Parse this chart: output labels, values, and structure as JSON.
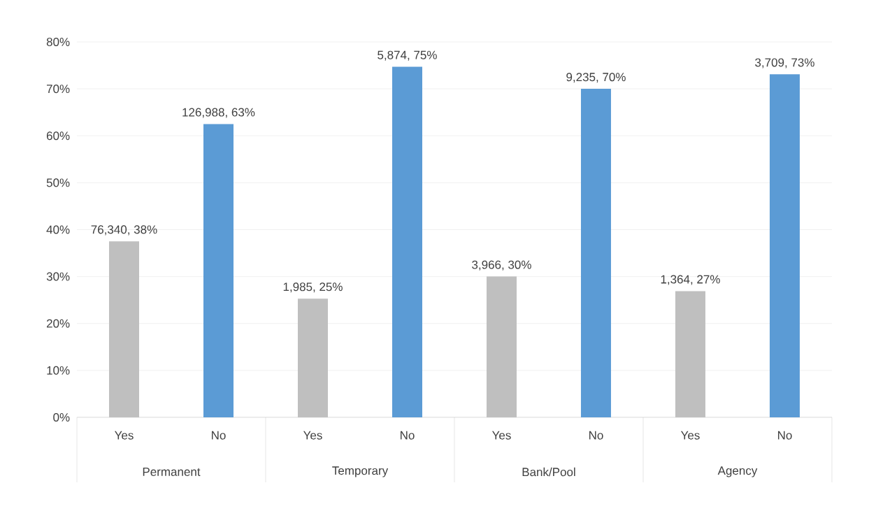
{
  "chart_data": {
    "type": "bar",
    "categories": [
      "Yes",
      "No",
      "Yes",
      "No",
      "Yes",
      "No",
      "Yes",
      "No"
    ],
    "values": [
      37.5,
      62.5,
      25.3,
      74.7,
      30.0,
      70.0,
      26.9,
      73.1
    ],
    "colors": [
      "#bfbfbf",
      "#5b9bd5",
      "#bfbfbf",
      "#5b9bd5",
      "#bfbfbf",
      "#5b9bd5",
      "#bfbfbf",
      "#5b9bd5"
    ],
    "value_labels": [
      "76,340, 38%",
      "126,988, 63%",
      "1,985, 25%",
      "5,874, 75%",
      "3,966, 30%",
      "9,235, 70%",
      "1,364, 27%",
      "3,709, 73%"
    ],
    "annotations": [
      "Permanent",
      "Temporary",
      "Bank/Pool",
      "Agency"
    ],
    "ylim": [
      0,
      80
    ],
    "yticks": [
      {
        "value": 0,
        "label": "0%"
      },
      {
        "value": 10,
        "label": "10%"
      },
      {
        "value": 20,
        "label": "20%"
      },
      {
        "value": 30,
        "label": "30%"
      },
      {
        "value": 40,
        "label": "40%"
      },
      {
        "value": 50,
        "label": "50%"
      },
      {
        "value": 60,
        "label": "60%"
      },
      {
        "value": 70,
        "label": "70%"
      },
      {
        "value": 80,
        "label": "80%"
      }
    ],
    "grid": "y"
  }
}
